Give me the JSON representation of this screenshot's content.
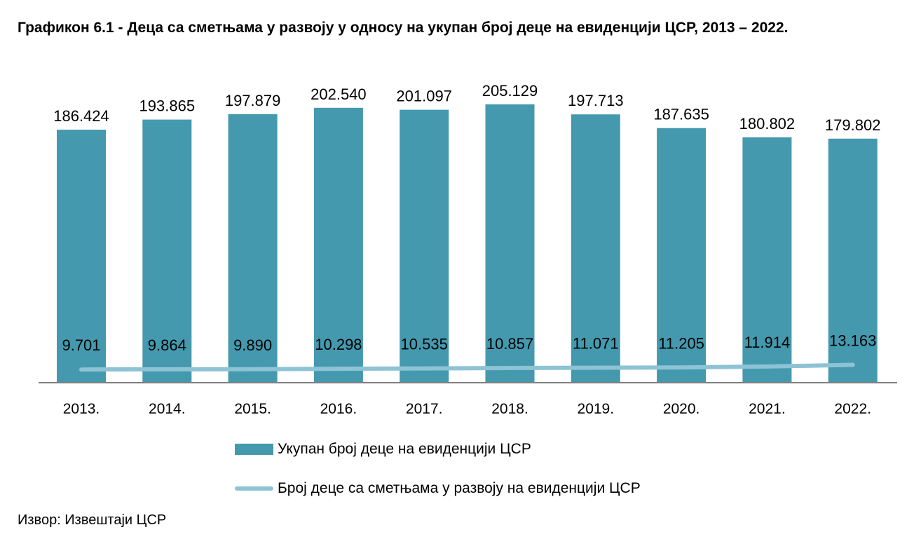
{
  "title": "Графикон 6.1 - Деца са сметњама у развоју у односу на укупан број деце на евиденцији ЦСР, 2013 – 2022.",
  "source": "Извор: Извештаји ЦСР",
  "colors": {
    "bar": "#4499ae",
    "line": "#8dc3d4",
    "axis": "#808080"
  },
  "chart_data": {
    "type": "bar",
    "title": "Графикон 6.1 - Деца са сметњама у развоју у односу на укупан број деце на евиденцији ЦСР, 2013 – 2022.",
    "categories": [
      "2013.",
      "2014.",
      "2015.",
      "2016.",
      "2017.",
      "2018.",
      "2019.",
      "2020.",
      "2021.",
      "2022."
    ],
    "series": [
      {
        "name": "Укупан број деце на евиденцији ЦСР",
        "type": "bar",
        "values": [
          186424,
          193865,
          197879,
          202540,
          201097,
          205129,
          197713,
          187635,
          180802,
          179802
        ],
        "labels": [
          "186.424",
          "193.865",
          "197.879",
          "202.540",
          "201.097",
          "205.129",
          "197.713",
          "187.635",
          "180.802",
          "179.802"
        ]
      },
      {
        "name": "Број деце са сметњама у развоју на евиденцији ЦСР",
        "type": "line",
        "values": [
          9701,
          9864,
          9890,
          10298,
          10535,
          10857,
          11071,
          11205,
          11914,
          13163
        ],
        "labels": [
          "9.701",
          "9.864",
          "9.890",
          "10.298",
          "10.535",
          "10.857",
          "11.071",
          "11.205",
          "11.914",
          "13.163"
        ]
      }
    ],
    "xlabel": "",
    "ylabel": "",
    "ylim": [
      0,
      220000
    ],
    "legend": "bottom",
    "grid": false
  }
}
